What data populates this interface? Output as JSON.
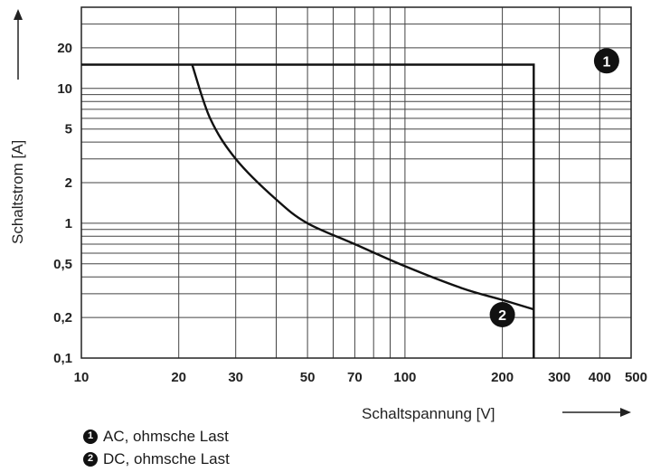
{
  "chart_data": {
    "type": "line",
    "title": "",
    "xlabel": "Schaltspannung [V]",
    "ylabel": "Schaltstrom [A]",
    "xscale": "log",
    "yscale": "log",
    "xlim": [
      10,
      500
    ],
    "ylim": [
      0.1,
      40
    ],
    "grid": true,
    "legend_placement": "bottom-left",
    "x_ticks": [
      {
        "value": 10,
        "label": "10"
      },
      {
        "value": 20,
        "label": "20"
      },
      {
        "value": 30,
        "label": "30"
      },
      {
        "value": 50,
        "label": "50"
      },
      {
        "value": 70,
        "label": "70"
      },
      {
        "value": 100,
        "label": "100"
      },
      {
        "value": 200,
        "label": "200"
      },
      {
        "value": 300,
        "label": "300"
      },
      {
        "value": 400,
        "label": "400"
      },
      {
        "value": 500,
        "label": "500"
      }
    ],
    "y_ticks": [
      {
        "value": 0.1,
        "label": "0,1"
      },
      {
        "value": 0.2,
        "label": "0,2"
      },
      {
        "value": 0.5,
        "label": "0,5"
      },
      {
        "value": 1,
        "label": "1"
      },
      {
        "value": 2,
        "label": "2"
      },
      {
        "value": 5,
        "label": "5"
      },
      {
        "value": 10,
        "label": "10"
      },
      {
        "value": 20,
        "label": "20"
      }
    ],
    "x_grid": [
      10,
      20,
      30,
      40,
      50,
      60,
      70,
      80,
      90,
      100,
      200,
      300,
      400,
      500
    ],
    "y_grid": [
      0.1,
      0.2,
      0.3,
      0.4,
      0.5,
      0.6,
      0.7,
      0.8,
      0.9,
      1,
      2,
      3,
      4,
      5,
      6,
      7,
      8,
      9,
      10,
      20,
      30,
      40
    ],
    "series": [
      {
        "name": "AC, ohmsche Last",
        "marker": "1",
        "marker_at": {
          "x": 420,
          "y": 16
        },
        "points": [
          [
            10,
            15
          ],
          [
            250,
            15
          ],
          [
            250,
            0.1
          ]
        ]
      },
      {
        "name": "DC, ohmsche Last",
        "marker": "2",
        "marker_at": {
          "x": 200,
          "y": 0.21
        },
        "points": [
          [
            22,
            15
          ],
          [
            25,
            6
          ],
          [
            30,
            3
          ],
          [
            40,
            1.5
          ],
          [
            50,
            1
          ],
          [
            70,
            0.7
          ],
          [
            100,
            0.48
          ],
          [
            150,
            0.33
          ],
          [
            200,
            0.27
          ],
          [
            250,
            0.23
          ]
        ]
      }
    ]
  },
  "legend": {
    "items": [
      {
        "badge": "1",
        "label": "AC, ohmsche Last"
      },
      {
        "badge": "2",
        "label": "DC, ohmsche Last"
      }
    ]
  }
}
